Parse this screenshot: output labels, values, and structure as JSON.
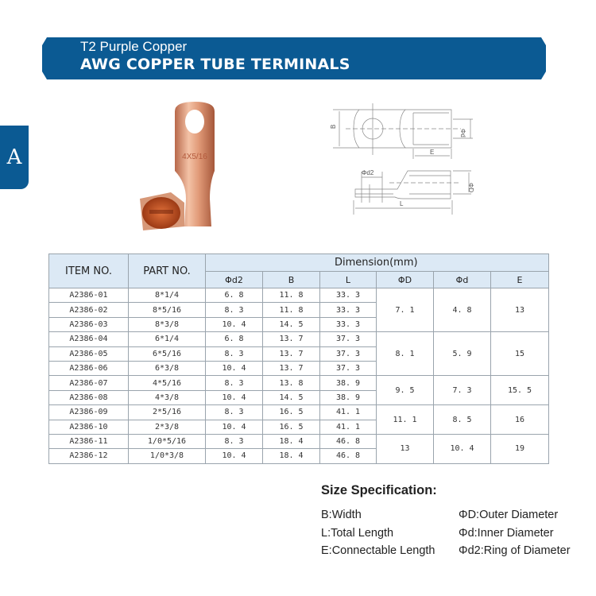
{
  "banner": {
    "subtitle": "T2 Purple Copper",
    "title": "AWG COPPER TUBE TERMINALS",
    "color": "#0b5a93"
  },
  "side_tab": {
    "label": "A"
  },
  "photo": {
    "stamp": "4X5/16"
  },
  "diagram": {
    "labels": {
      "B": "B",
      "E": "E",
      "d": "Φd",
      "d2": "Φd2",
      "D": "ΦD",
      "L": "L"
    }
  },
  "table": {
    "headers": {
      "item": "ITEM NO.",
      "part": "PART NO.",
      "dimension": "Dimension(mm)",
      "cols": [
        "Φd2",
        "B",
        "L",
        "ΦD",
        "Φd",
        "E"
      ]
    },
    "rows": [
      {
        "item": "A2386-01",
        "part": "8*1/4",
        "d2": "6. 8",
        "B": "11. 8",
        "L": "33. 3"
      },
      {
        "item": "A2386-02",
        "part": "8*5/16",
        "d2": "8. 3",
        "B": "11. 8",
        "L": "33. 3"
      },
      {
        "item": "A2386-03",
        "part": "8*3/8",
        "d2": "10. 4",
        "B": "14. 5",
        "L": "33. 3"
      },
      {
        "item": "A2386-04",
        "part": "6*1/4",
        "d2": "6. 8",
        "B": "13. 7",
        "L": "37. 3"
      },
      {
        "item": "A2386-05",
        "part": "6*5/16",
        "d2": "8. 3",
        "B": "13. 7",
        "L": "37. 3"
      },
      {
        "item": "A2386-06",
        "part": "6*3/8",
        "d2": "10. 4",
        "B": "13. 7",
        "L": "37. 3"
      },
      {
        "item": "A2386-07",
        "part": "4*5/16",
        "d2": "8. 3",
        "B": "13. 8",
        "L": "38. 9"
      },
      {
        "item": "A2386-08",
        "part": "4*3/8",
        "d2": "10. 4",
        "B": "14. 5",
        "L": "38. 9"
      },
      {
        "item": "A2386-09",
        "part": "2*5/16",
        "d2": "8. 3",
        "B": "16. 5",
        "L": "41. 1"
      },
      {
        "item": "A2386-10",
        "part": "2*3/8",
        "d2": "10. 4",
        "B": "16. 5",
        "L": "41. 1"
      },
      {
        "item": "A2386-11",
        "part": "1/0*5/16",
        "d2": "8. 3",
        "B": "18. 4",
        "L": "46. 8"
      },
      {
        "item": "A2386-12",
        "part": "1/0*3/8",
        "d2": "10. 4",
        "B": "18. 4",
        "L": "46. 8"
      }
    ],
    "groups": [
      {
        "rows": 3,
        "D": "7. 1",
        "d": "4. 8",
        "E": "13"
      },
      {
        "rows": 3,
        "D": "8. 1",
        "d": "5. 9",
        "E": "15"
      },
      {
        "rows": 2,
        "D": "9. 5",
        "d": "7. 3",
        "E": "15. 5"
      },
      {
        "rows": 2,
        "D": "11. 1",
        "d": "8. 5",
        "E": "16"
      },
      {
        "rows": 2,
        "D": "13",
        "d": "10. 4",
        "E": "19"
      }
    ]
  },
  "spec": {
    "title": "Size Specification:",
    "left": [
      "B:Width",
      "L:Total Length",
      "E:Connectable Length"
    ],
    "right": [
      "ΦD:Outer Diameter",
      "Φd:Inner Diameter",
      "Φd2:Ring of Diameter"
    ]
  }
}
